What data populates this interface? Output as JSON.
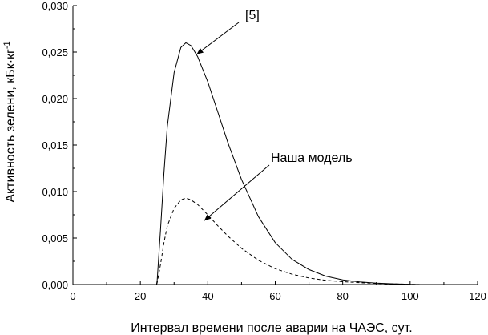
{
  "chart_data": {
    "type": "line",
    "title": "",
    "xlabel": "Интервал времени после аварии на ЧАЭС, сут.",
    "ylabel": "Активность зелени, кБк·кг",
    "ylabel_superscript": "-1",
    "xlim": [
      0,
      120
    ],
    "ylim": [
      0,
      0.03
    ],
    "xticks": [
      0,
      20,
      40,
      60,
      80,
      100,
      120
    ],
    "xtick_labels": [
      "0",
      "20",
      "40",
      "60",
      "80",
      "100",
      "120"
    ],
    "yticks": [
      0,
      0.005,
      0.01,
      0.015,
      0.02,
      0.025,
      0.03
    ],
    "ytick_labels": [
      "0,000",
      "0,005",
      "0,010",
      "0,015",
      "0,020",
      "0,025",
      "0,030"
    ],
    "grid": false,
    "legend": "none",
    "series": [
      {
        "name": "[5]",
        "style": "solid",
        "color": "#000000",
        "x": [
          0,
          24.8,
          25,
          26,
          27,
          28,
          30,
          32,
          33.5,
          35,
          37,
          40,
          43,
          46,
          50,
          55,
          60,
          65,
          70,
          75,
          80,
          85,
          90,
          95,
          100,
          103
        ],
        "y": [
          0,
          0,
          0.0005,
          0.006,
          0.012,
          0.017,
          0.0228,
          0.0255,
          0.026,
          0.0257,
          0.0245,
          0.0218,
          0.0185,
          0.0152,
          0.0113,
          0.0073,
          0.0045,
          0.0027,
          0.0016,
          0.0009,
          0.0005,
          0.00028,
          0.00015,
          8e-05,
          3e-05,
          0
        ]
      },
      {
        "name": "Наша модель",
        "style": "dashed",
        "color": "#000000",
        "x": [
          0,
          24.8,
          25,
          26,
          27,
          28,
          30,
          32,
          33.5,
          35,
          37,
          40,
          43,
          46,
          50,
          55,
          60,
          65,
          70,
          75,
          80,
          85,
          90,
          95,
          100,
          103
        ],
        "y": [
          0,
          0,
          0.0002,
          0.0022,
          0.0045,
          0.0063,
          0.0082,
          0.0091,
          0.0093,
          0.0091,
          0.0086,
          0.0075,
          0.0063,
          0.0052,
          0.0039,
          0.0026,
          0.0017,
          0.0011,
          0.0007,
          0.00045,
          0.0003,
          0.0002,
          0.00012,
          7e-05,
          3e-05,
          0
        ]
      }
    ],
    "annotations": [
      {
        "text": "[5]",
        "series": 0,
        "x": 36,
        "y": 0.0246
      },
      {
        "text": "Наша модель",
        "series": 1,
        "x": 38,
        "y": 0.0067
      }
    ]
  }
}
